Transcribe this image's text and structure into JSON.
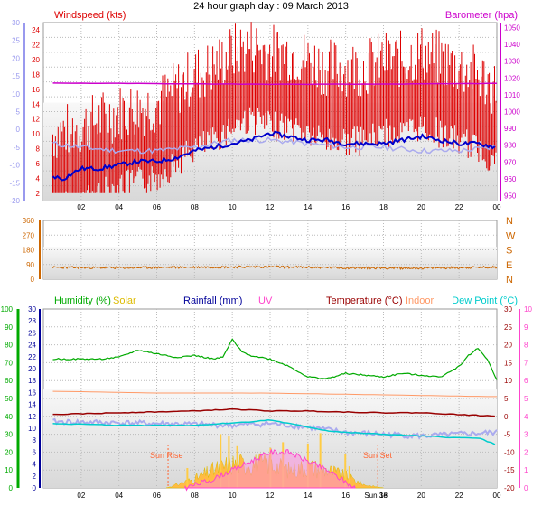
{
  "title": "24 hour graph day : 09 March 2013",
  "colors": {
    "windspeed": "#dd0000",
    "wind_avg": "#0000cc",
    "temp_ghost": "#aaaaee",
    "barometer": "#cc00cc",
    "direction": "#cc6600",
    "humidity": "#00aa00",
    "solar": "#ddbb00",
    "rainfall": "#000099",
    "uv": "#ff44cc",
    "temperature": "#990000",
    "indoor": "#ff9966",
    "dewpoint": "#00cccc",
    "plot_bg": "#e4e4e4"
  },
  "chart_data": [
    {
      "type": "line",
      "name": "wind-barometer",
      "title": "24 hour graph day : 09 March 2013",
      "series": [
        {
          "name": "Windspeed (kts)",
          "axis": "right-inner",
          "color": "#dd0000",
          "x": [
            0.5,
            2,
            4,
            6,
            7,
            8,
            9,
            10,
            11,
            12,
            13,
            14,
            15,
            16,
            17,
            18,
            19,
            20,
            21,
            22,
            23,
            24
          ],
          "values": [
            6,
            7,
            9,
            10,
            12,
            14,
            15,
            17,
            18,
            17,
            17,
            16,
            15,
            15,
            15,
            16,
            16,
            17,
            16,
            15,
            14,
            12
          ]
        },
        {
          "name": "Barometer (hpa)",
          "axis": "right",
          "color": "#cc00cc",
          "x": [
            0.5,
            4,
            8,
            12,
            16,
            20,
            24
          ],
          "values": [
            1017,
            1016.8,
            1016.5,
            1016.3,
            1016.3,
            1016.5,
            1016.8
          ]
        },
        {
          "name": "Temperature",
          "axis": "left",
          "color": "#0000cc",
          "x": [
            0.5,
            1,
            2,
            3,
            4,
            5,
            6,
            7,
            8,
            9,
            10,
            11,
            12,
            13,
            14,
            15,
            16,
            17,
            18,
            19,
            20,
            21,
            22,
            23,
            24
          ],
          "values": [
            -13,
            -14,
            -11,
            -11,
            -10,
            -9,
            -9,
            -8,
            -6,
            -5,
            -4,
            -3,
            -1,
            -2,
            -3,
            -3,
            -4,
            -4,
            -4,
            -3,
            -2,
            -3,
            -4,
            -4,
            -5
          ]
        },
        {
          "name": "Dew Point",
          "axis": "left",
          "color": "#aaaaee",
          "x": [
            0.5,
            2,
            4,
            6,
            8,
            10,
            12,
            14,
            16,
            18,
            20,
            22,
            24
          ],
          "values": [
            -4,
            -5,
            -6,
            -6,
            -5,
            -3,
            -3,
            -4,
            -5,
            -5,
            -6,
            -6,
            -5
          ]
        }
      ],
      "left_axis": {
        "ticks": [
          30,
          25,
          20,
          15,
          10,
          5,
          0,
          -5,
          -10,
          -15,
          -20
        ],
        "range": [
          -20,
          30
        ]
      },
      "right_inner_axis": {
        "ticks": [
          24,
          22,
          20,
          18,
          16,
          14,
          12,
          10,
          8,
          6,
          4,
          2
        ],
        "range": [
          1,
          25
        ]
      },
      "right_axis": {
        "ticks": [
          1050,
          1040,
          1030,
          1020,
          1010,
          1000,
          990,
          980,
          970,
          960,
          950
        ],
        "range": [
          947,
          1053
        ]
      },
      "x_ticks": [
        "02",
        "04",
        "06",
        "08",
        "10",
        "12",
        "14",
        "16",
        "18",
        "20",
        "22",
        "00"
      ],
      "legend_left": "Windspeed (kts)",
      "legend_right": "Barometer (hpa)"
    },
    {
      "type": "line",
      "name": "wind-direction",
      "series": [
        {
          "name": "Wind direction",
          "color": "#cc6600",
          "x": [
            0.5,
            4,
            8,
            12,
            16,
            20,
            24
          ],
          "values": [
            72,
            70,
            74,
            76,
            70,
            68,
            74
          ]
        }
      ],
      "left_axis": {
        "ticks": [
          360,
          270,
          180,
          90,
          0
        ],
        "range": [
          0,
          360
        ]
      },
      "compass": [
        "N",
        "W",
        "S",
        "E",
        "N"
      ]
    },
    {
      "type": "line",
      "name": "weather-combined",
      "series": [
        {
          "name": "Humidity (%)",
          "axis": "far-left",
          "color": "#00aa00",
          "x": [
            0.5,
            3,
            4,
            5,
            6,
            7,
            8,
            9,
            9.5,
            10,
            10.5,
            11,
            12,
            13,
            14,
            15,
            16,
            17,
            18,
            19,
            20,
            21,
            21.5,
            22,
            22.5,
            23,
            23.5,
            24
          ],
          "values": [
            72,
            72,
            73,
            77,
            75,
            73,
            74,
            72,
            73,
            83,
            76,
            74,
            72,
            68,
            62,
            61,
            64,
            63,
            62,
            64,
            63,
            62,
            65,
            68,
            74,
            78,
            72,
            60
          ]
        },
        {
          "name": "Temperature (°C)",
          "axis": "right",
          "color": "#990000",
          "x": [
            0.5,
            4,
            8,
            10,
            12,
            14,
            16,
            18,
            20,
            22,
            24
          ],
          "values": [
            0.5,
            1,
            1.5,
            2,
            1.5,
            1.5,
            1.2,
            1,
            1,
            0.5,
            0
          ]
        },
        {
          "name": "Indoor",
          "axis": "right",
          "color": "#ff9966",
          "x": [
            0.5,
            6,
            12,
            18,
            24
          ],
          "values": [
            7,
            6.5,
            6.5,
            6,
            5.5
          ]
        },
        {
          "name": "Dew Point (°C)",
          "axis": "right",
          "color": "#00cccc",
          "x": [
            0.5,
            4,
            8,
            11,
            12,
            13,
            14,
            15,
            16,
            18,
            20,
            22,
            23,
            24
          ],
          "values": [
            -2,
            -2.5,
            -2.5,
            -1.5,
            -1,
            -2,
            -3,
            -4,
            -4.5,
            -5,
            -5.5,
            -6,
            -6,
            -8
          ]
        },
        {
          "name": "Solar",
          "axis": "inner-left",
          "color": "#ddbb00",
          "x": [
            0.5,
            6.5,
            7,
            8,
            9,
            10,
            11,
            12,
            13,
            14,
            15,
            16,
            17,
            18,
            24
          ],
          "values": [
            0,
            0,
            0.5,
            1.5,
            3,
            4,
            4,
            4,
            3,
            3.5,
            3,
            2,
            0.5,
            0,
            0
          ]
        },
        {
          "name": "UV",
          "axis": "inner-left",
          "color": "#ff44cc",
          "x": [
            0.5,
            7.5,
            9,
            11,
            12,
            13,
            14,
            15,
            16.5,
            24
          ],
          "values": [
            0,
            0,
            0.5,
            1.5,
            2,
            2,
            1.5,
            1,
            0,
            0
          ]
        }
      ],
      "far_left_axis": {
        "ticks": [
          100,
          90,
          80,
          70,
          60,
          50,
          40,
          30,
          20,
          10,
          0
        ],
        "range": [
          0,
          100
        ]
      },
      "inner_left_axis": {
        "ticks": [
          30,
          28,
          26,
          24,
          22,
          20,
          18,
          16,
          14,
          12,
          10,
          8,
          6,
          4,
          2,
          0
        ],
        "range": [
          0,
          30
        ]
      },
      "right_axis": {
        "ticks": [
          30,
          25,
          20,
          15,
          10,
          5,
          0,
          -5,
          -10,
          -15,
          -20
        ],
        "range": [
          -20,
          30
        ]
      },
      "far_right_axis": {
        "ticks": [
          10,
          9,
          8,
          7,
          6,
          5,
          4,
          3,
          2,
          1,
          0
        ],
        "range": [
          0,
          10
        ]
      },
      "x_ticks": [
        "02",
        "04",
        "06",
        "08",
        "10",
        "12",
        "14",
        "16",
        "18",
        "20",
        "22",
        "00"
      ],
      "legend": [
        "Humidity (%)",
        "Solar",
        "Rainfall (mm)",
        "UV",
        "Temperature (°C)",
        "Indoor",
        "Dew Point (°C)"
      ],
      "annotations": [
        "Sun Rise",
        "Sun Set"
      ],
      "extra_tick": "Sun 3e"
    }
  ]
}
